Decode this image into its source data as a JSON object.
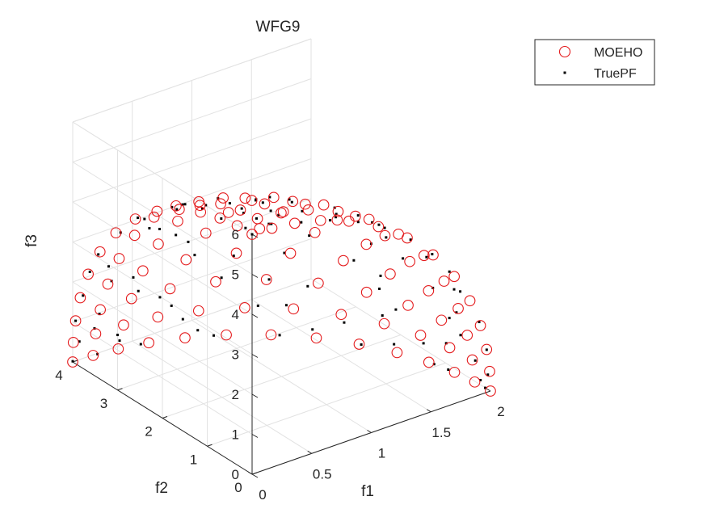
{
  "chart_data": {
    "type": "scatter",
    "title": "WFG9",
    "xlabel": "f1",
    "ylabel": "f2",
    "zlabel": "f3",
    "xlim": [
      0,
      2
    ],
    "ylim": [
      0,
      4
    ],
    "zlim": [
      0,
      6
    ],
    "xticks": [
      "0",
      "0.5",
      "1",
      "1.5",
      "2"
    ],
    "yticks": [
      "0",
      "1",
      "2",
      "3",
      "4"
    ],
    "zticks": [
      "0",
      "1",
      "2",
      "3",
      "4",
      "5",
      "6"
    ],
    "grid": true,
    "legend_position": "top-right",
    "view": "3d-isometric",
    "front": "triangular Pareto front on the ellipsoid (f1/2)^2 + (f2/4)^2 + (f3/6)^2 = 1, f1,f2,f3 >= 0; points approximately uniformly spread across the surface",
    "series": [
      {
        "name": "MOEHO",
        "marker": "open-circle",
        "color": "#e41a1c",
        "grid_divisions": 13
      },
      {
        "name": "TruePF",
        "marker": "dot",
        "color": "#000000",
        "grid_divisions": 13
      }
    ]
  }
}
